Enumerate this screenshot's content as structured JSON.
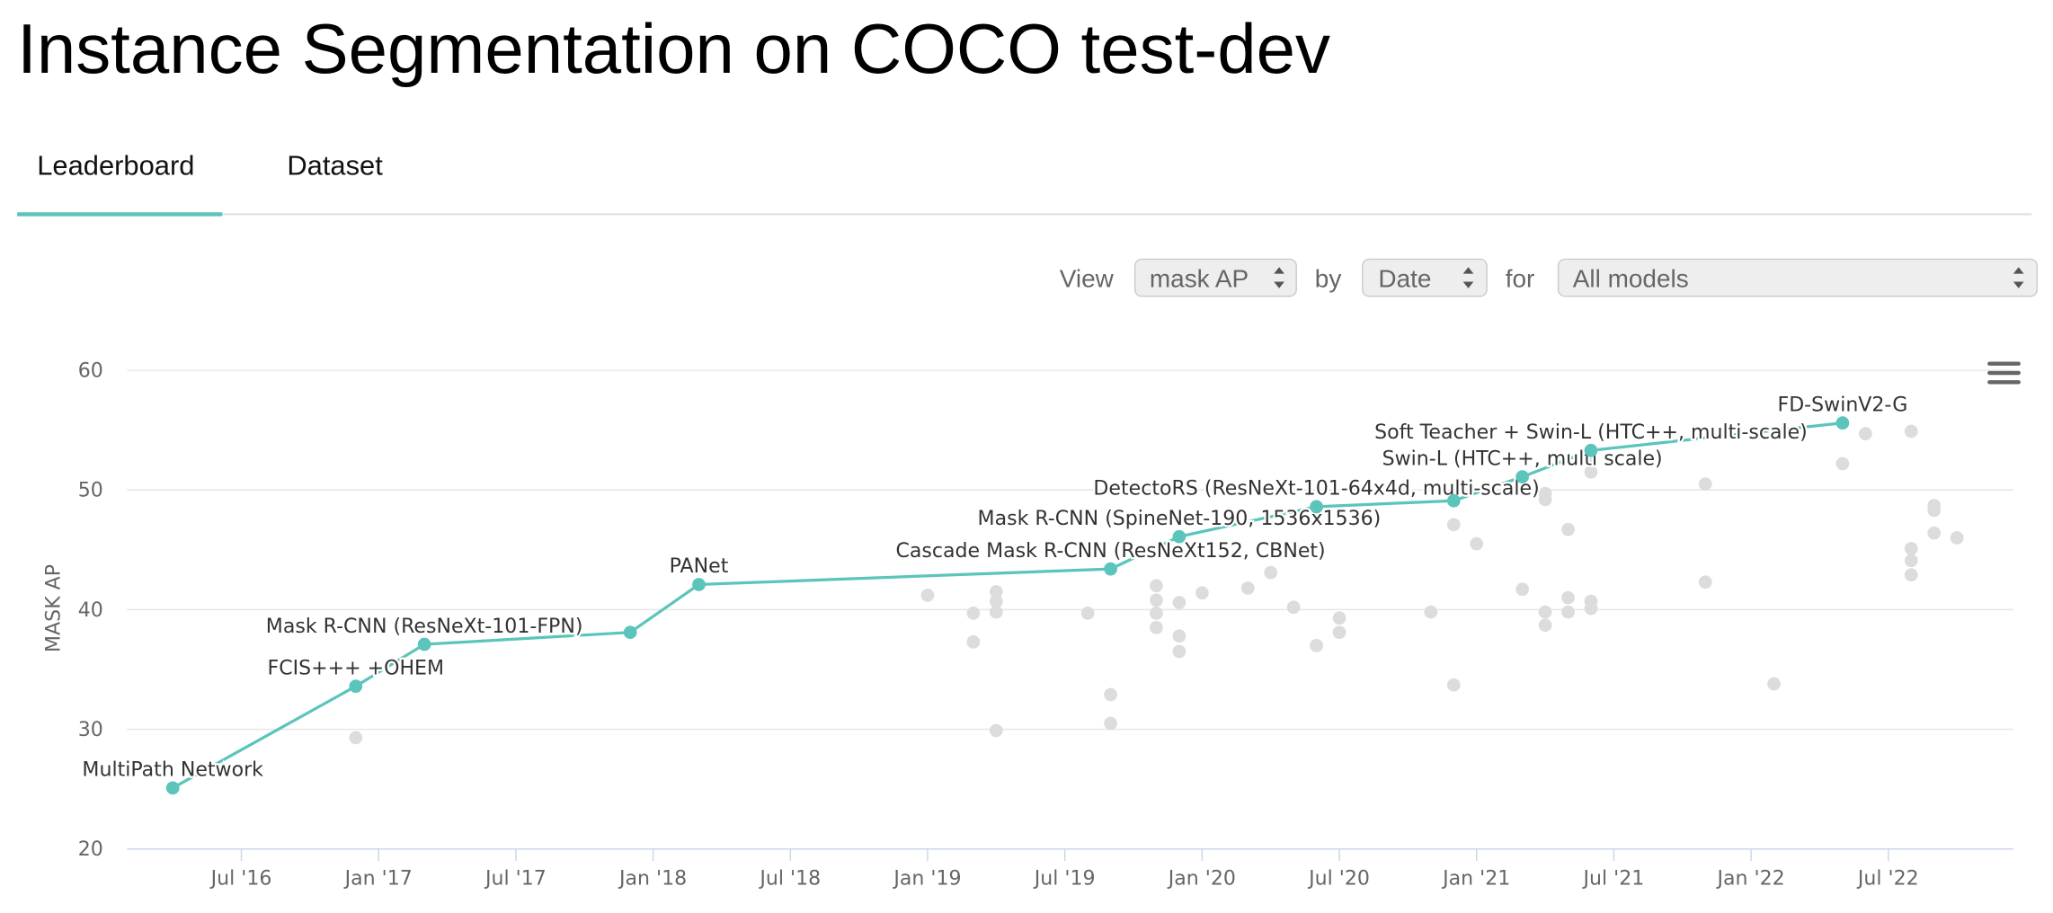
{
  "header": {
    "title": "Instance Segmentation on COCO test-dev"
  },
  "tabs": [
    "Leaderboard",
    "Dataset"
  ],
  "controls": {
    "view_label": "View",
    "view_value": "mask AP",
    "by_label": "by",
    "by_value": "Date",
    "for_label": "for",
    "for_value": "All models"
  },
  "chart_data": {
    "type": "scatter",
    "y_label": "MASK AP",
    "xlim": [
      "2016-02",
      "2022-12"
    ],
    "ylim": [
      20,
      60
    ],
    "yticks": [
      20,
      30,
      40,
      50,
      60
    ],
    "xticks": [
      {
        "value": "2016-07",
        "label": "Jul '16"
      },
      {
        "value": "2017-01",
        "label": "Jan '17"
      },
      {
        "value": "2017-07",
        "label": "Jul '17"
      },
      {
        "value": "2018-01",
        "label": "Jan '18"
      },
      {
        "value": "2018-07",
        "label": "Jul '18"
      },
      {
        "value": "2019-01",
        "label": "Jan '19"
      },
      {
        "value": "2019-07",
        "label": "Jul '19"
      },
      {
        "value": "2020-01",
        "label": "Jan '20"
      },
      {
        "value": "2020-07",
        "label": "Jul '20"
      },
      {
        "value": "2021-01",
        "label": "Jan '21"
      },
      {
        "value": "2021-07",
        "label": "Jul '21"
      },
      {
        "value": "2022-01",
        "label": "Jan '22"
      },
      {
        "value": "2022-07",
        "label": "Jul '22"
      }
    ],
    "grid": true,
    "series": [
      {
        "color": "#dcdcdc",
        "x": [
          "2016-12",
          "2019-01",
          "2019-03",
          "2019-03",
          "2019-04",
          "2019-04",
          "2019-04",
          "2019-04",
          "2019-08",
          "2019-09",
          "2019-09",
          "2019-11",
          "2019-11",
          "2019-11",
          "2019-11",
          "2019-12",
          "2019-12",
          "2019-12",
          "2020-01",
          "2020-03",
          "2020-04",
          "2020-05",
          "2020-06",
          "2020-07",
          "2020-07",
          "2020-11",
          "2020-12",
          "2020-12",
          "2021-01",
          "2021-03",
          "2021-04",
          "2021-04",
          "2021-04",
          "2021-04",
          "2021-05",
          "2021-05",
          "2021-05",
          "2021-06",
          "2021-06",
          "2021-06",
          "2021-06",
          "2021-11",
          "2021-11",
          "2022-02",
          "2022-05",
          "2022-06",
          "2022-08",
          "2022-08",
          "2022-08",
          "2022-08",
          "2022-09",
          "2022-09",
          "2022-09",
          "2022-10"
        ],
        "values": [
          29.3,
          41.2,
          39.7,
          37.3,
          29.9,
          41.5,
          40.7,
          39.8,
          39.7,
          32.9,
          30.5,
          42.0,
          40.8,
          39.7,
          38.5,
          37.8,
          40.6,
          36.5,
          41.4,
          41.8,
          43.1,
          40.2,
          37.0,
          39.3,
          38.1,
          39.8,
          33.7,
          47.1,
          45.5,
          41.7,
          49.7,
          49.2,
          39.8,
          38.7,
          46.7,
          41.0,
          39.8,
          52.8,
          51.5,
          40.7,
          40.1,
          50.5,
          42.3,
          33.8,
          52.2,
          54.7,
          54.9,
          45.1,
          44.1,
          42.9,
          48.7,
          48.3,
          46.4,
          46.0
        ]
      },
      {
        "color": "#5bc4bb",
        "line": true,
        "x": [
          "2016-04",
          "2016-12",
          "2017-03",
          "2017-12",
          "2018-03",
          "2019-09",
          "2019-12",
          "2020-06",
          "2020-12",
          "2021-03",
          "2021-06",
          "2022-05"
        ],
        "values": [
          25.1,
          33.6,
          37.1,
          38.1,
          42.1,
          43.4,
          46.1,
          48.6,
          49.1,
          51.1,
          53.3,
          55.6
        ],
        "point_labels": [
          "MultiPath Network",
          "FCIS+++ +OHEM",
          "Mask R-CNN (ResNeXt-101-FPN)",
          null,
          "PANet",
          "Cascade Mask R-CNN (ResNeXt152, CBNet)",
          "Mask R-CNN (SpineNet-190, 1536x1536)",
          "DetectoRS (ResNeXt-101-64x4d, multi-scale)",
          null,
          "Swin-L (HTC++, multi scale)",
          "Soft Teacher + Swin-L (HTC++, multi-scale)",
          "FD-SwinV2-G"
        ]
      }
    ]
  }
}
